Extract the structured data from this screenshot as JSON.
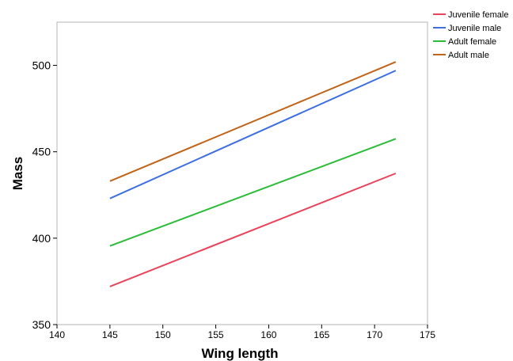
{
  "chart_data": {
    "type": "line",
    "xlabel": "Wing length",
    "ylabel": "Mass",
    "xlim": [
      140,
      175
    ],
    "ylim": [
      350,
      525
    ],
    "xticks": [
      140,
      145,
      150,
      155,
      160,
      165,
      170,
      175
    ],
    "yticks": [
      350,
      400,
      450,
      500
    ],
    "grid": false,
    "legend_position": "top-right outside",
    "series": [
      {
        "name": "Juvenile female",
        "color": "#e8435a",
        "x": [
          145,
          172
        ],
        "y": [
          372,
          437.5
        ]
      },
      {
        "name": "Juvenile male",
        "color": "#3d6fe0",
        "x": [
          145,
          172
        ],
        "y": [
          423,
          497
        ]
      },
      {
        "name": "Adult female",
        "color": "#2dbb3a",
        "x": [
          145,
          172
        ],
        "y": [
          395.5,
          457.5
        ]
      },
      {
        "name": "Adult male",
        "color": "#c0641a",
        "x": [
          145,
          172
        ],
        "y": [
          433,
          502
        ]
      }
    ]
  }
}
